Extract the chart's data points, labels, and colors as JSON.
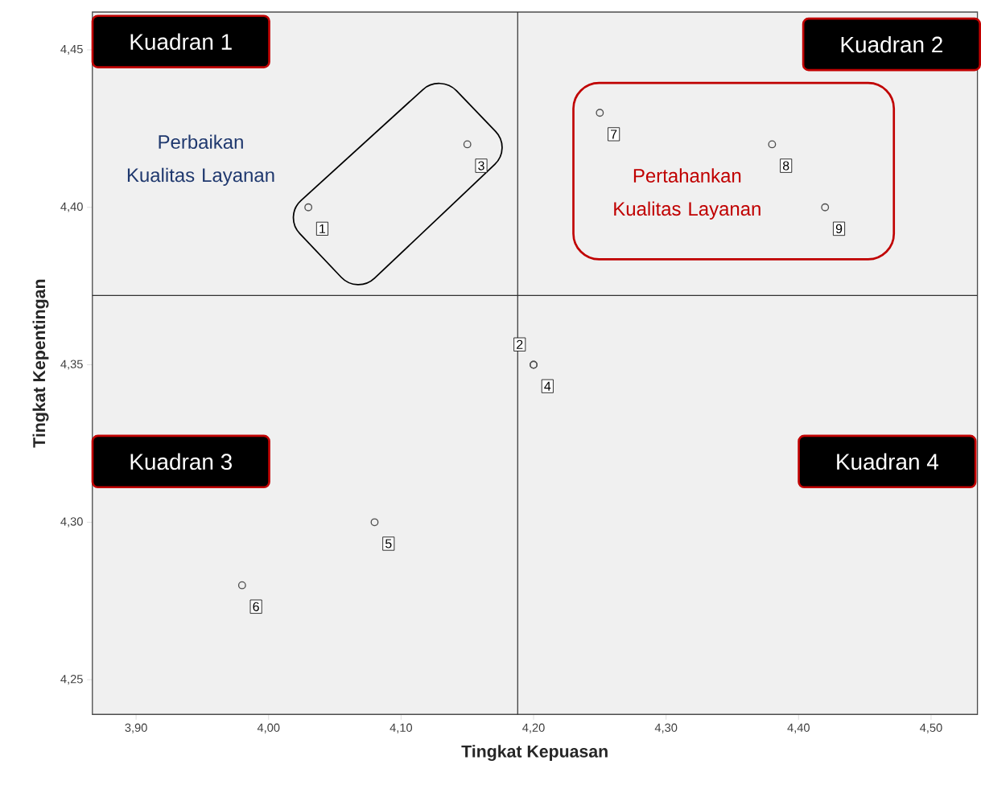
{
  "chart_data": {
    "type": "scatter",
    "xlabel": "Tingkat Kepuasan",
    "ylabel": "Tingkat Kepentingan",
    "x": [
      4.03,
      4.2,
      4.15,
      4.2,
      4.08,
      3.98,
      4.25,
      4.38,
      4.42
    ],
    "values": [
      4.4,
      4.35,
      4.42,
      4.35,
      4.3,
      4.28,
      4.43,
      4.42,
      4.4
    ],
    "color": "#505050",
    "marker": "circle",
    "xlim": [
      3.867,
      4.535
    ],
    "ylim": [
      4.239,
      4.462
    ],
    "xticks": [
      {
        "value": 3.9,
        "label": "3,90"
      },
      {
        "value": 4.0,
        "label": "4,00"
      },
      {
        "value": 4.1,
        "label": "4,10"
      },
      {
        "value": 4.2,
        "label": "4,20"
      },
      {
        "value": 4.3,
        "label": "4,30"
      },
      {
        "value": 4.4,
        "label": "4,40"
      },
      {
        "value": 4.5,
        "label": "4,50"
      }
    ],
    "yticks": [
      {
        "value": 4.25,
        "label": "4,25"
      },
      {
        "value": 4.3,
        "label": "4,30"
      },
      {
        "value": 4.35,
        "label": "4,35"
      },
      {
        "value": 4.4,
        "label": "4,40"
      },
      {
        "value": 4.45,
        "label": "4,45"
      }
    ],
    "ref_lines": [
      {
        "axis": "x",
        "value": 4.188,
        "color": "#303030"
      },
      {
        "axis": "y",
        "value": 4.372,
        "color": "#303030"
      }
    ],
    "annotations": [
      "Kuadran 1",
      "Kuadran 2",
      "Kuadran 3",
      "Kuadran 4",
      "Perbaikan Kualitas Layanan",
      "Pertahankan Kualitas Layanan",
      {
        "text": "1",
        "x": 4.03,
        "y": 4.4
      },
      {
        "text": "2",
        "x": 4.2,
        "y": 4.35
      },
      {
        "text": "3",
        "x": 4.15,
        "y": 4.42
      },
      {
        "text": "4",
        "x": 4.2,
        "y": 4.35
      },
      {
        "text": "5",
        "x": 4.08,
        "y": 4.3
      },
      {
        "text": "6",
        "x": 3.98,
        "y": 4.28
      },
      {
        "text": "7",
        "x": 4.25,
        "y": 4.43
      },
      {
        "text": "8",
        "x": 4.38,
        "y": 4.42
      },
      {
        "text": "9",
        "x": 4.42,
        "y": 4.4
      }
    ]
  }
}
